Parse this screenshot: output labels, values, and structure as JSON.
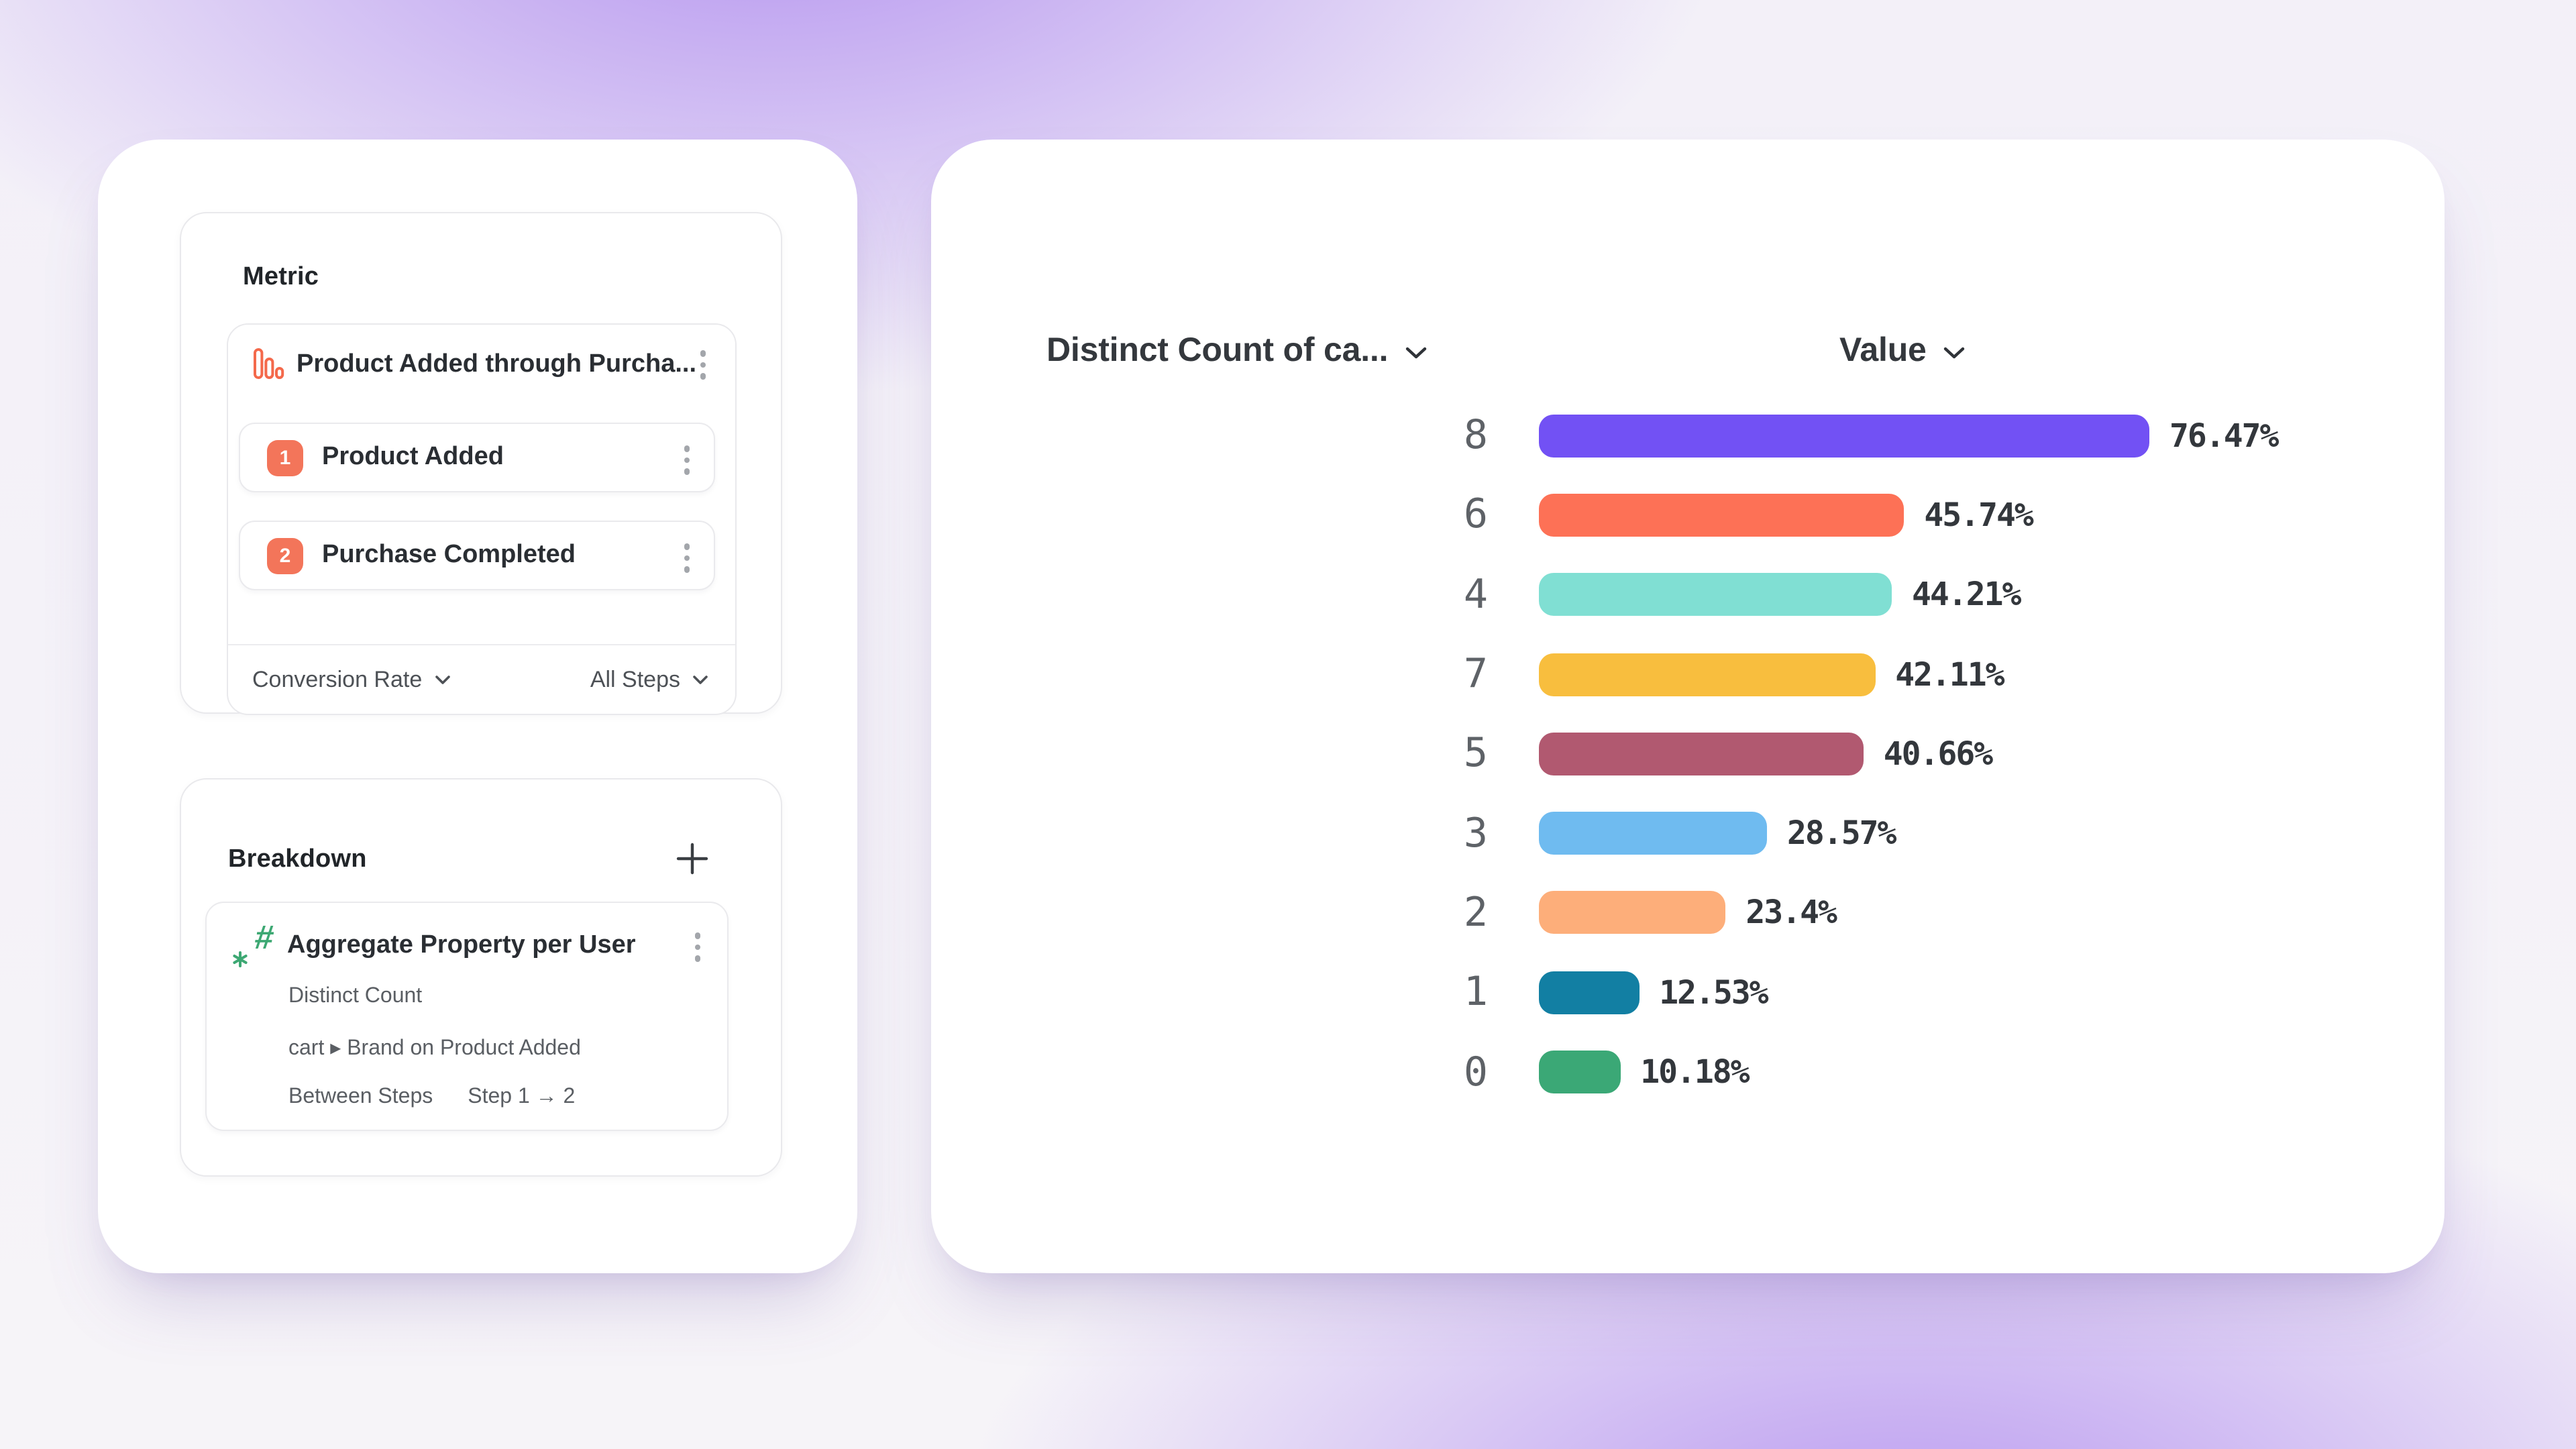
{
  "page": {
    "bg_base": "#F6F4F9",
    "bg_accent": "#B493EF"
  },
  "metric_panel": {
    "title": "Metric",
    "metric_card": {
      "icon": "funnel-chart-icon",
      "icon_color": "#F4694B",
      "title": "Product Added through Purcha...",
      "steps": [
        {
          "number": "1",
          "label": "Product Added",
          "badge_color": "#F3755A"
        },
        {
          "number": "2",
          "label": "Purchase Completed",
          "badge_color": "#F3755A"
        }
      ],
      "footer": {
        "measure": "Conversion Rate",
        "steps_filter": "All Steps"
      }
    }
  },
  "breakdown_panel": {
    "title": "Breakdown",
    "add_icon": "plus-icon",
    "item": {
      "icon": "hash-star-icon",
      "icon_color": "#3DA873",
      "title": "Aggregate Property per User",
      "aggregation": "Distinct Count",
      "property": "cart ▸ Brand on Product Added",
      "scope_label": "Between Steps",
      "scope_value": "Step 1 → 2"
    }
  },
  "chart": {
    "header_left": "Distinct Count of ca...",
    "header_right": "Value"
  },
  "chart_data": {
    "type": "bar",
    "orientation": "horizontal",
    "title": "",
    "xlabel": "",
    "ylabel": "",
    "categories": [
      "8",
      "6",
      "4",
      "7",
      "5",
      "3",
      "2",
      "1",
      "0"
    ],
    "values": [
      76.47,
      45.74,
      44.21,
      42.11,
      40.66,
      28.57,
      23.4,
      12.53,
      10.18
    ],
    "value_labels": [
      "76.47%",
      "45.74%",
      "44.21%",
      "42.11%",
      "40.66%",
      "28.57%",
      "23.4%",
      "12.53%",
      "10.18%"
    ],
    "bar_colors": [
      "#7251F4",
      "#FD7156",
      "#80DFD3",
      "#F8BE3E",
      "#B15970",
      "#6FBBF0",
      "#FDAE7A",
      "#127FA3",
      "#3BA876"
    ],
    "xlim": [
      0,
      100
    ],
    "grid": false,
    "legend": false
  }
}
